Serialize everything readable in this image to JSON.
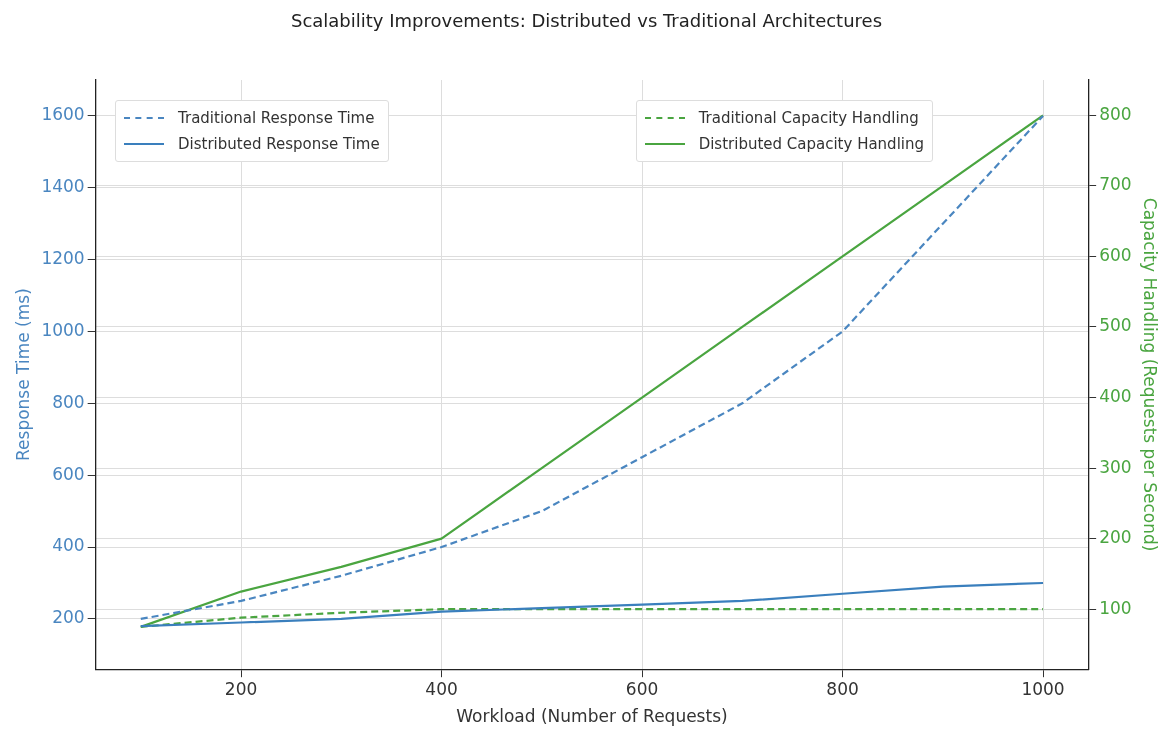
{
  "chart_data": {
    "type": "line",
    "title": "Scalability Improvements: Distributed vs Traditional Architectures",
    "xlabel": "Workload (Number of Requests)",
    "ylabel": "Response Time (ms)",
    "y2label": "Capacity Handling (Requests per Second)",
    "x": [
      100,
      200,
      300,
      400,
      500,
      600,
      700,
      800,
      900,
      1000
    ],
    "xlim": [
      55,
      1045
    ],
    "xticks": [
      200,
      400,
      600,
      800,
      1000
    ],
    "ylim": [
      60,
      1700
    ],
    "yticks": [
      200,
      400,
      600,
      800,
      1000,
      1200,
      1400,
      1600
    ],
    "y2lim": [
      15,
      850
    ],
    "y2ticks": [
      100,
      200,
      300,
      400,
      500,
      600,
      700,
      800
    ],
    "grid": true,
    "legend": "top",
    "marker": "none",
    "series": [
      {
        "name": "Traditional Response Time",
        "color": "#4a86c0",
        "line_style": "dashed",
        "values": [
          200,
          250,
          320,
          400,
          500,
          650,
          800,
          1000,
          1300,
          1600
        ]
      },
      {
        "name": "Distributed Response Time",
        "color": "#3a7fbd",
        "line_style": "solid",
        "values": [
          180,
          190,
          200,
          220,
          230,
          240,
          250,
          270,
          290,
          300
        ]
      },
      {
        "name": "Traditional Capacity Handling",
        "color": "#4aa540",
        "line_style": "dashed",
        "axis": "y2",
        "values": [
          75,
          88,
          95,
          100,
          100,
          100,
          100,
          100,
          100,
          100
        ]
      },
      {
        "name": "Distributed Capacity Handling",
        "color": "#4aa540",
        "line_style": "solid",
        "axis": "y2",
        "values": [
          75,
          125,
          160,
          200,
          300,
          400,
          500,
          600,
          700,
          800
        ]
      }
    ]
  }
}
